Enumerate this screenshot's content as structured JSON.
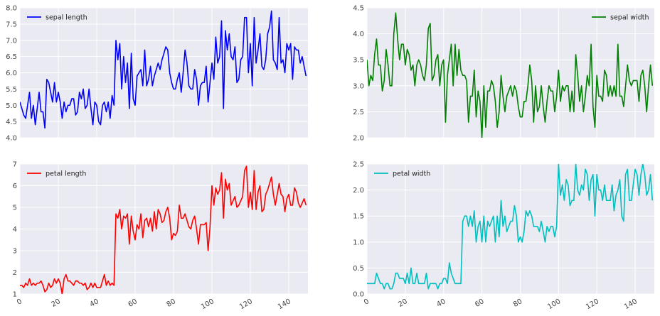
{
  "figure": {
    "background": "#ffffff",
    "panel_background": "#eaeaf2",
    "grid_color": "#ffffff"
  },
  "chart_data": [
    {
      "type": "line",
      "name": "sepal length",
      "color": "#0000ff",
      "legend_position": "top-left",
      "x_start": 0,
      "xlim": [
        0,
        150
      ],
      "ylim": [
        4.0,
        8.0
      ],
      "xticks": [
        0,
        20,
        40,
        60,
        80,
        100,
        120,
        140
      ],
      "xtick_labels": [],
      "yticks": [
        4.0,
        4.5,
        5.0,
        5.5,
        6.0,
        6.5,
        7.0,
        7.5,
        8.0
      ],
      "ytick_labels": [
        "4.0",
        "4.5",
        "5.0",
        "5.5",
        "6.0",
        "6.5",
        "7.0",
        "7.5",
        "8.0"
      ],
      "grid": true,
      "values": [
        5.1,
        4.9,
        4.7,
        4.6,
        5.0,
        5.4,
        4.6,
        5.0,
        4.4,
        4.9,
        5.4,
        4.8,
        4.8,
        4.3,
        5.8,
        5.7,
        5.4,
        5.1,
        5.7,
        5.1,
        5.4,
        5.1,
        4.6,
        5.1,
        4.8,
        5.0,
        5.0,
        5.2,
        5.2,
        4.7,
        4.8,
        5.4,
        5.2,
        5.5,
        4.9,
        5.0,
        5.5,
        4.9,
        4.4,
        5.1,
        5.0,
        4.5,
        4.4,
        5.0,
        5.1,
        4.8,
        5.1,
        4.6,
        5.3,
        5.0,
        7.0,
        6.4,
        6.9,
        5.5,
        6.5,
        5.7,
        6.3,
        4.9,
        6.6,
        5.2,
        5.0,
        5.9,
        6.0,
        6.1,
        5.6,
        6.7,
        5.6,
        5.8,
        6.2,
        5.6,
        5.9,
        6.1,
        6.3,
        6.1,
        6.4,
        6.6,
        6.8,
        6.7,
        6.0,
        5.7,
        5.5,
        5.5,
        5.8,
        6.0,
        5.4,
        6.0,
        6.7,
        6.3,
        5.6,
        5.5,
        5.5,
        6.1,
        5.8,
        5.0,
        5.6,
        5.7,
        5.7,
        6.2,
        5.1,
        5.7,
        6.3,
        5.8,
        7.1,
        6.3,
        6.5,
        7.6,
        4.9,
        7.3,
        6.7,
        7.2,
        6.5,
        6.4,
        6.8,
        5.7,
        5.8,
        6.4,
        6.5,
        7.7,
        7.7,
        6.0,
        6.9,
        5.6,
        7.7,
        6.3,
        6.7,
        7.2,
        6.2,
        6.1,
        6.4,
        7.2,
        7.4,
        7.9,
        6.4,
        6.3,
        6.1,
        7.7,
        6.3,
        6.4,
        6.0,
        6.9,
        6.7,
        6.9,
        5.8,
        6.8,
        6.7,
        6.7,
        6.3,
        6.5,
        6.2,
        5.9
      ]
    },
    {
      "type": "line",
      "name": "sepal width",
      "color": "#008000",
      "legend_position": "top-right",
      "x_start": 0,
      "xlim": [
        0,
        150
      ],
      "ylim": [
        2.0,
        4.5
      ],
      "xticks": [
        0,
        20,
        40,
        60,
        80,
        100,
        120,
        140
      ],
      "xtick_labels": [],
      "yticks": [
        2.0,
        2.5,
        3.0,
        3.5,
        4.0,
        4.5
      ],
      "ytick_labels": [
        "2.0",
        "2.5",
        "3.0",
        "3.5",
        "4.0",
        "4.5"
      ],
      "grid": true,
      "values": [
        3.5,
        3.0,
        3.2,
        3.1,
        3.6,
        3.9,
        3.4,
        3.4,
        2.9,
        3.1,
        3.7,
        3.4,
        3.0,
        3.0,
        4.0,
        4.4,
        3.9,
        3.5,
        3.8,
        3.8,
        3.4,
        3.7,
        3.6,
        3.3,
        3.4,
        3.0,
        3.4,
        3.5,
        3.4,
        3.2,
        3.1,
        3.4,
        4.1,
        4.2,
        3.1,
        3.2,
        3.5,
        3.6,
        3.0,
        3.4,
        3.5,
        2.3,
        3.2,
        3.5,
        3.8,
        3.0,
        3.8,
        3.2,
        3.7,
        3.3,
        3.2,
        3.2,
        3.1,
        2.3,
        2.8,
        2.8,
        3.3,
        2.4,
        2.9,
        2.7,
        2.0,
        3.0,
        2.2,
        2.9,
        2.9,
        3.1,
        3.0,
        2.7,
        2.2,
        2.5,
        3.2,
        2.8,
        2.5,
        2.8,
        2.9,
        3.0,
        2.8,
        3.0,
        2.9,
        2.6,
        2.4,
        2.4,
        2.7,
        2.7,
        3.0,
        3.4,
        3.1,
        2.3,
        3.0,
        2.5,
        2.6,
        3.0,
        2.6,
        2.3,
        2.7,
        3.0,
        2.9,
        2.9,
        2.5,
        2.8,
        3.3,
        2.7,
        3.0,
        2.9,
        3.0,
        3.0,
        2.5,
        2.9,
        2.5,
        3.6,
        3.2,
        2.7,
        3.0,
        2.5,
        2.8,
        3.2,
        3.0,
        3.8,
        2.6,
        2.2,
        3.2,
        2.8,
        2.8,
        2.7,
        3.3,
        3.2,
        2.8,
        3.0,
        2.8,
        3.0,
        2.8,
        3.8,
        2.8,
        2.8,
        2.6,
        3.0,
        3.4,
        3.1,
        3.0,
        3.1,
        3.1,
        3.1,
        2.7,
        3.2,
        3.3,
        3.0,
        2.5,
        3.0,
        3.4,
        3.0
      ]
    },
    {
      "type": "line",
      "name": "petal length",
      "color": "#ff0000",
      "legend_position": "top-left",
      "x_start": 0,
      "xlim": [
        0,
        150
      ],
      "ylim": [
        1,
        7
      ],
      "xticks": [
        0,
        20,
        40,
        60,
        80,
        100,
        120,
        140
      ],
      "xtick_labels": [
        "0",
        "20",
        "40",
        "60",
        "80",
        "100",
        "120",
        "140"
      ],
      "yticks": [
        1,
        2,
        3,
        4,
        5,
        6,
        7
      ],
      "ytick_labels": [
        "1",
        "2",
        "3",
        "4",
        "5",
        "6",
        "7"
      ],
      "grid": true,
      "values": [
        1.4,
        1.4,
        1.3,
        1.5,
        1.4,
        1.7,
        1.4,
        1.5,
        1.4,
        1.5,
        1.5,
        1.6,
        1.4,
        1.1,
        1.2,
        1.5,
        1.3,
        1.4,
        1.7,
        1.5,
        1.7,
        1.5,
        1.0,
        1.7,
        1.9,
        1.6,
        1.6,
        1.5,
        1.4,
        1.6,
        1.6,
        1.5,
        1.5,
        1.4,
        1.5,
        1.2,
        1.3,
        1.5,
        1.3,
        1.5,
        1.3,
        1.3,
        1.3,
        1.6,
        1.9,
        1.4,
        1.6,
        1.4,
        1.5,
        1.4,
        4.7,
        4.5,
        4.9,
        4.0,
        4.6,
        4.5,
        4.7,
        3.3,
        4.6,
        3.9,
        3.5,
        4.2,
        4.0,
        4.7,
        3.6,
        4.4,
        4.5,
        4.1,
        4.5,
        3.9,
        4.8,
        4.0,
        4.9,
        4.7,
        4.3,
        4.4,
        4.8,
        5.0,
        4.5,
        3.5,
        3.8,
        3.7,
        3.9,
        5.1,
        4.5,
        4.5,
        4.7,
        4.4,
        4.1,
        4.0,
        4.4,
        4.6,
        4.0,
        3.3,
        4.2,
        4.2,
        4.2,
        4.3,
        3.0,
        4.1,
        6.0,
        5.1,
        5.9,
        5.6,
        5.8,
        6.6,
        4.5,
        6.3,
        5.8,
        6.1,
        5.1,
        5.3,
        5.5,
        5.0,
        5.1,
        5.3,
        5.5,
        6.7,
        6.9,
        5.0,
        5.7,
        4.9,
        6.7,
        4.9,
        5.7,
        6.0,
        4.8,
        4.9,
        5.6,
        5.8,
        6.1,
        6.4,
        5.6,
        5.1,
        5.6,
        6.1,
        5.6,
        5.5,
        4.8,
        5.4,
        5.6,
        5.1,
        5.1,
        5.9,
        5.7,
        5.2,
        5.0,
        5.2,
        5.4,
        5.1
      ]
    },
    {
      "type": "line",
      "name": "petal width",
      "color": "#00bfbf",
      "legend_position": "top-left",
      "x_start": 0,
      "xlim": [
        0,
        150
      ],
      "ylim": [
        0.0,
        2.5
      ],
      "xticks": [
        0,
        20,
        40,
        60,
        80,
        100,
        120,
        140
      ],
      "xtick_labels": [
        "0",
        "20",
        "40",
        "60",
        "80",
        "100",
        "120",
        "140"
      ],
      "yticks": [
        0.0,
        0.5,
        1.0,
        1.5,
        2.0,
        2.5
      ],
      "ytick_labels": [
        "0.0",
        "0.5",
        "1.0",
        "1.5",
        "2.0",
        "2.5"
      ],
      "grid": true,
      "values": [
        0.2,
        0.2,
        0.2,
        0.2,
        0.2,
        0.4,
        0.3,
        0.2,
        0.2,
        0.1,
        0.2,
        0.2,
        0.1,
        0.1,
        0.2,
        0.4,
        0.4,
        0.3,
        0.3,
        0.3,
        0.2,
        0.4,
        0.2,
        0.5,
        0.2,
        0.2,
        0.4,
        0.2,
        0.2,
        0.2,
        0.2,
        0.4,
        0.1,
        0.2,
        0.2,
        0.2,
        0.2,
        0.1,
        0.2,
        0.2,
        0.3,
        0.3,
        0.2,
        0.6,
        0.4,
        0.3,
        0.2,
        0.2,
        0.2,
        0.2,
        1.4,
        1.5,
        1.5,
        1.3,
        1.5,
        1.3,
        1.6,
        1.0,
        1.3,
        1.4,
        1.0,
        1.5,
        1.0,
        1.4,
        1.3,
        1.4,
        1.5,
        1.0,
        1.5,
        1.1,
        1.8,
        1.3,
        1.5,
        1.2,
        1.3,
        1.4,
        1.4,
        1.7,
        1.5,
        1.0,
        1.1,
        1.0,
        1.2,
        1.6,
        1.5,
        1.6,
        1.5,
        1.3,
        1.3,
        1.3,
        1.2,
        1.4,
        1.2,
        1.0,
        1.3,
        1.2,
        1.3,
        1.3,
        1.1,
        1.3,
        2.5,
        1.9,
        2.1,
        1.8,
        2.2,
        2.1,
        1.7,
        1.8,
        1.8,
        2.5,
        2.0,
        1.9,
        2.1,
        2.0,
        2.4,
        2.3,
        1.8,
        2.2,
        2.3,
        1.5,
        2.3,
        2.0,
        2.0,
        1.8,
        2.1,
        1.8,
        1.8,
        1.8,
        2.1,
        1.6,
        1.9,
        2.0,
        2.2,
        1.5,
        1.4,
        2.3,
        2.4,
        1.8,
        1.8,
        2.1,
        2.4,
        2.3,
        1.9,
        2.3,
        2.5,
        2.3,
        1.9,
        2.0,
        2.3,
        1.8
      ]
    }
  ]
}
